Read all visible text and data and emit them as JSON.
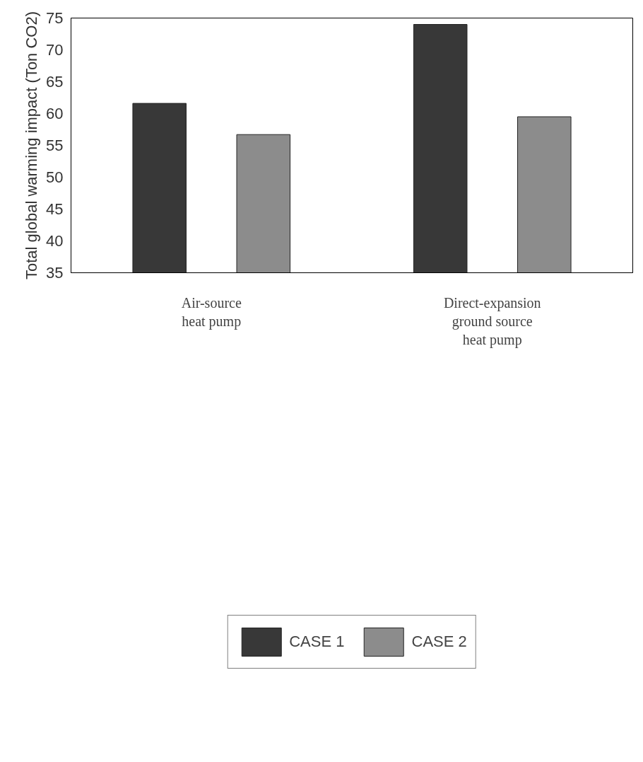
{
  "chart_data": {
    "type": "bar",
    "ylabel": "Total global warming impact (Ton CO2)",
    "categories": [
      "Air-source\nheat pump",
      "Direct-expansion\nground source\nheat pump"
    ],
    "series": [
      {
        "name": "CASE 1",
        "color": "#383838",
        "values": [
          61.6,
          74.0
        ]
      },
      {
        "name": "CASE 2",
        "color": "#8c8c8c",
        "values": [
          56.7,
          59.5
        ]
      }
    ],
    "ylim": [
      35,
      75
    ],
    "yticks": [
      35,
      40,
      45,
      50,
      55,
      60,
      65,
      70,
      75
    ],
    "grid": false,
    "legend": "bottom"
  }
}
